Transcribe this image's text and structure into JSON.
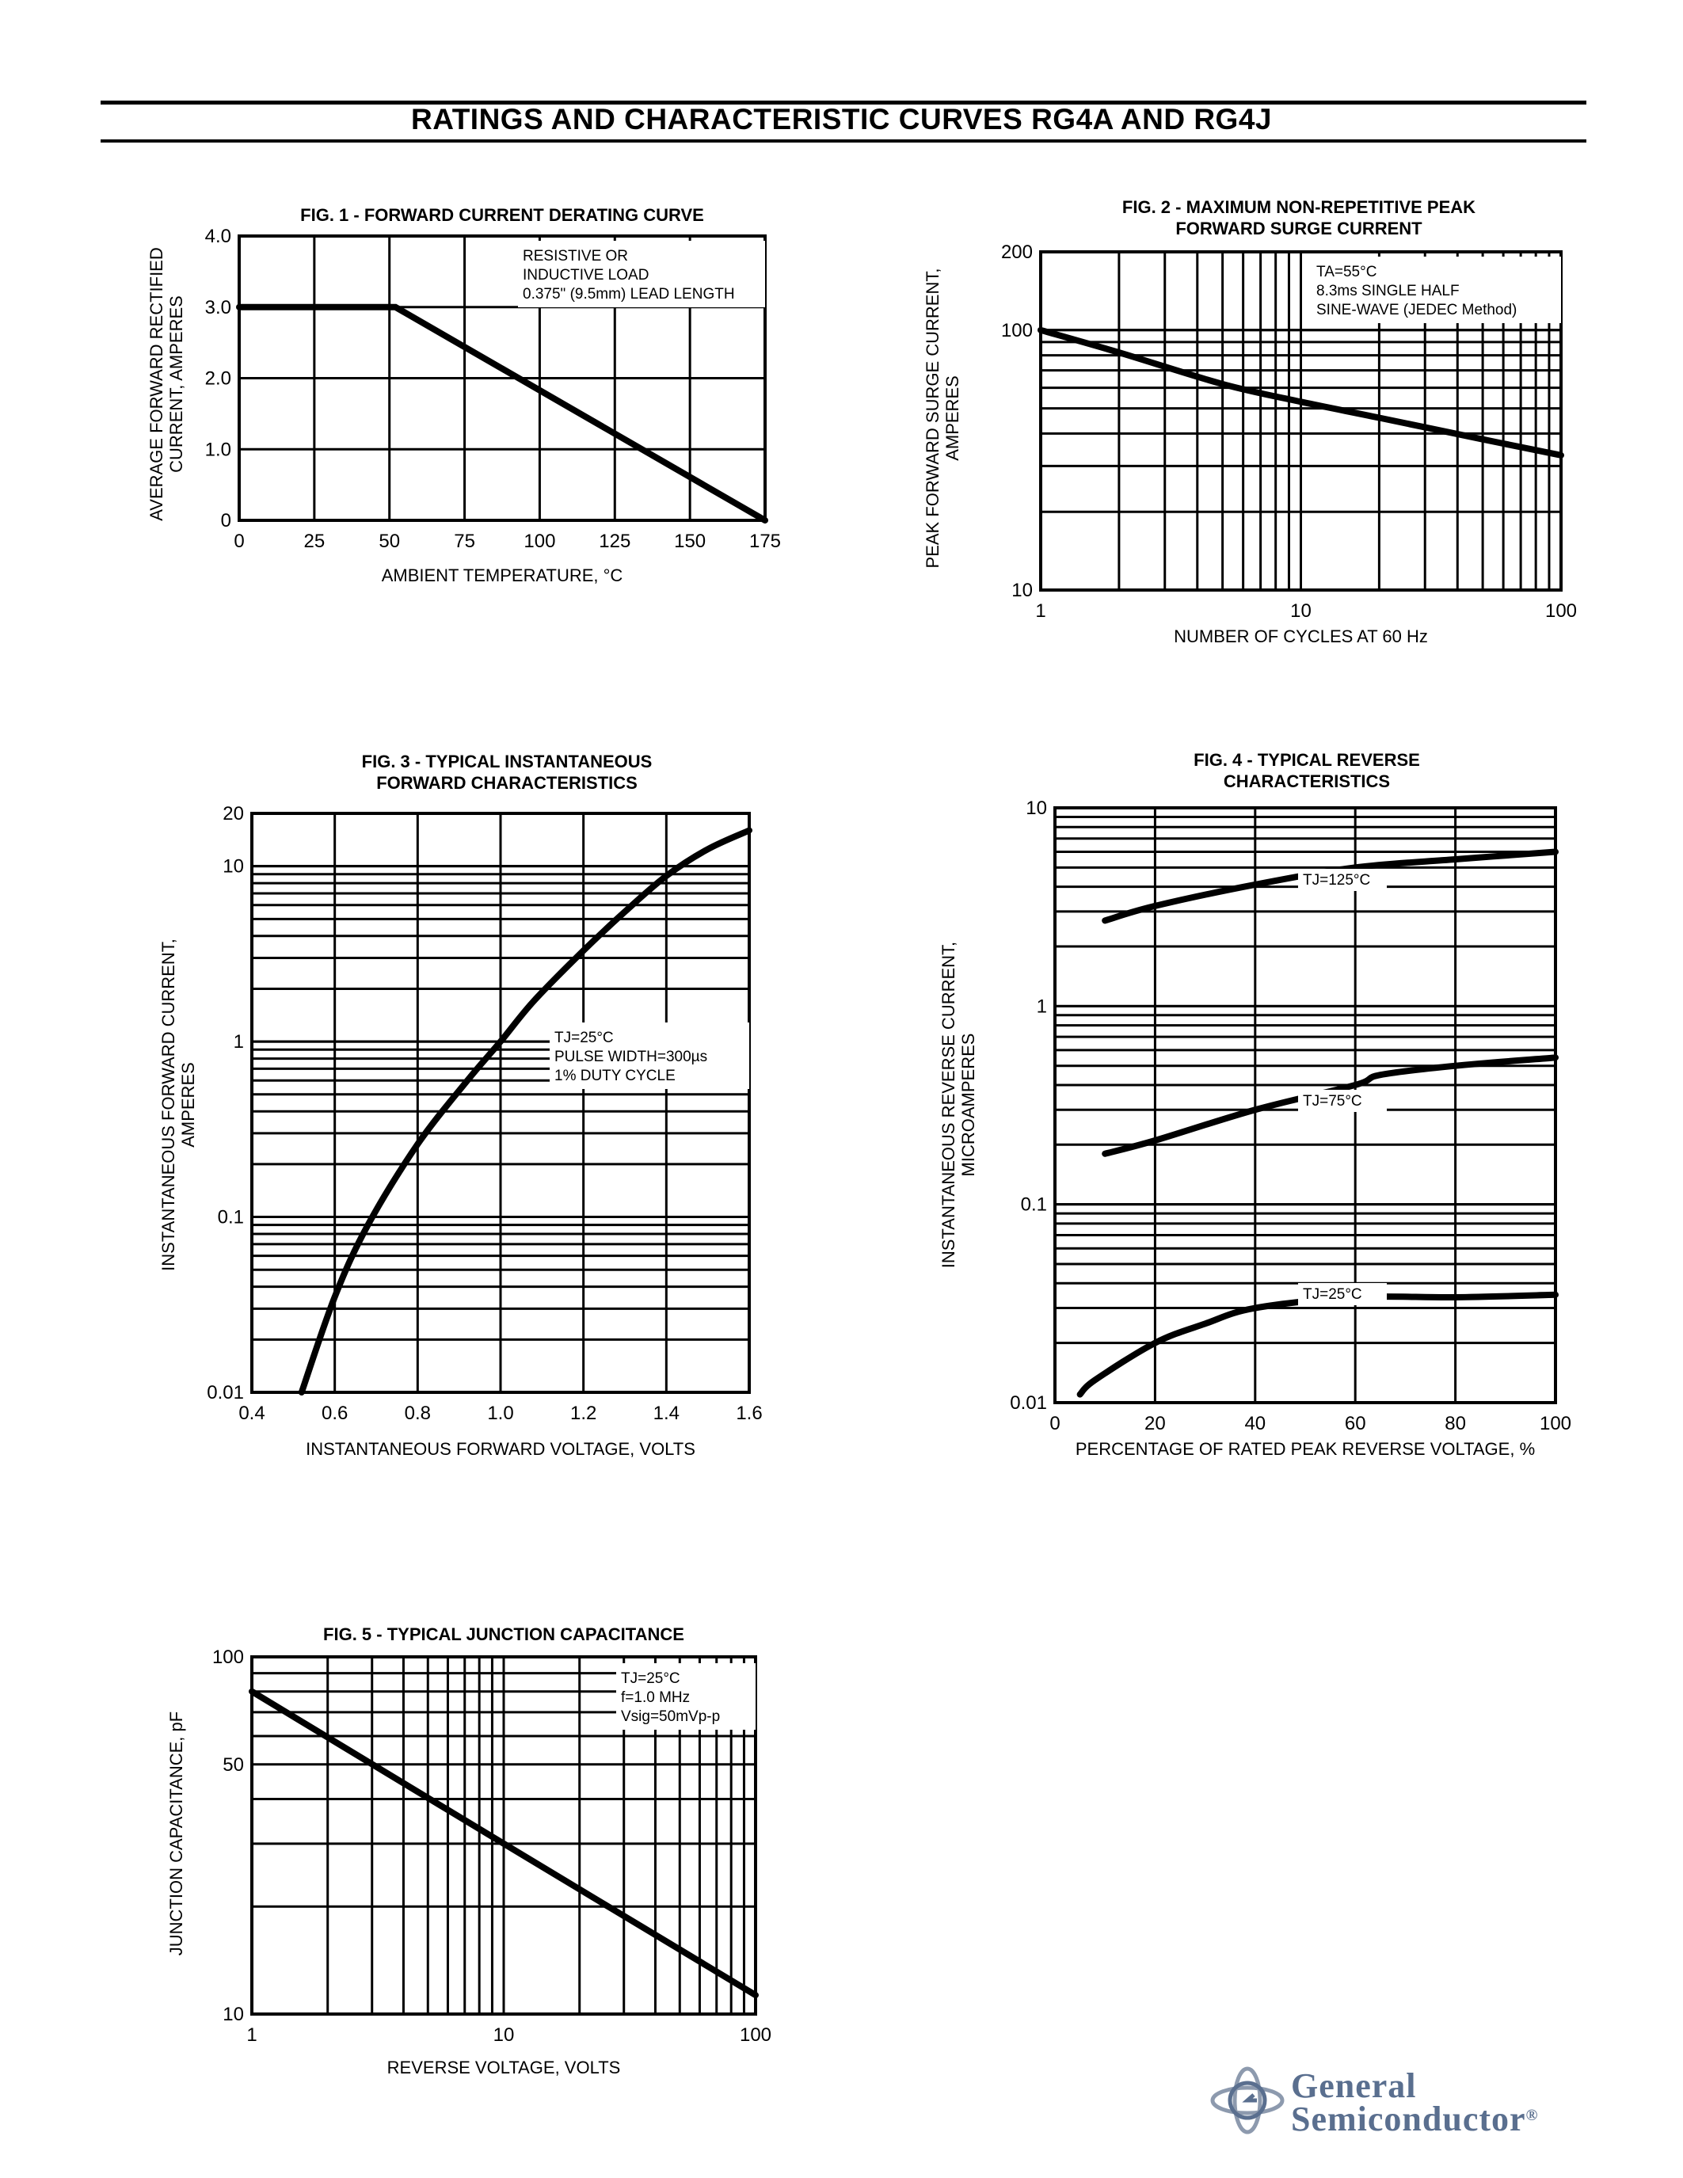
{
  "page": {
    "title": "RATINGS AND CHARACTERISTIC CURVES RG4A AND RG4J"
  },
  "logo": {
    "line1": "General",
    "line2": "Semiconductor",
    "mark": "®"
  },
  "colors": {
    "ink": "#000000",
    "logo": "#5a6f8f"
  },
  "chart_data": [
    {
      "id": "fig1",
      "type": "line",
      "title": "FIG. 1 - FORWARD CURRENT DERATING CURVE",
      "xlabel": "AMBIENT TEMPERATURE, °C",
      "ylabel": "AVERAGE FORWARD RECTIFIED CURRENT, AMPERES",
      "xscale": "linear",
      "yscale": "linear",
      "xlim": [
        0,
        175
      ],
      "ylim": [
        0,
        4.0
      ],
      "xticks": [
        "0",
        "25",
        "50",
        "75",
        "100",
        "125",
        "150",
        "175"
      ],
      "yticks": [
        "0",
        "1.0",
        "2.0",
        "3.0",
        "4.0"
      ],
      "grid": true,
      "annotation": [
        "RESISTIVE OR",
        "INDUCTIVE LOAD",
        "0.375\" (9.5mm) LEAD LENGTH"
      ],
      "series": [
        {
          "x": [
            0,
            52,
            175
          ],
          "y": [
            3.0,
            3.0,
            0
          ]
        }
      ]
    },
    {
      "id": "fig2",
      "type": "line",
      "title": "FIG. 2 - MAXIMUM NON-REPETITIVE PEAK FORWARD SURGE CURRENT",
      "xlabel": "NUMBER OF CYCLES AT 60 Hz",
      "ylabel": "PEAK FORWARD SURGE CURRENT, AMPERES",
      "xscale": "log",
      "yscale": "log",
      "xlim": [
        1,
        100
      ],
      "ylim": [
        10,
        200
      ],
      "xticks": [
        "1",
        "10",
        "100"
      ],
      "yticks": [
        "10",
        "100",
        "200"
      ],
      "grid": true,
      "annotation": [
        "TA=55°C",
        "8.3ms SINGLE HALF",
        "SINE-WAVE (JEDEC Method)"
      ],
      "series": [
        {
          "x": [
            1,
            2,
            5,
            10,
            20,
            50,
            100
          ],
          "y": [
            100,
            82,
            62,
            53,
            46,
            38,
            33
          ]
        }
      ]
    },
    {
      "id": "fig3",
      "type": "line",
      "title": "FIG. 3 - TYPICAL INSTANTANEOUS FORWARD CHARACTERISTICS",
      "xlabel": "INSTANTANEOUS FORWARD VOLTAGE, VOLTS",
      "ylabel": "INSTANTANEOUS FORWARD CURRENT, AMPERES",
      "xscale": "linear",
      "yscale": "log",
      "xlim": [
        0.4,
        1.6
      ],
      "ylim": [
        0.01,
        20
      ],
      "xticks": [
        "0.4",
        "0.6",
        "0.8",
        "1.0",
        "1.2",
        "1.4",
        "1.6"
      ],
      "yticks": [
        "0.01",
        "0.1",
        "1",
        "10",
        "20"
      ],
      "grid": true,
      "annotation": [
        "TJ=25°C",
        "PULSE WIDTH=300µs",
        "1% DUTY CYCLE"
      ],
      "series": [
        {
          "x": [
            0.52,
            0.6,
            0.68,
            0.8,
            0.92,
            1.0,
            1.08,
            1.2,
            1.3,
            1.4,
            1.5,
            1.6
          ],
          "y": [
            0.01,
            0.035,
            0.09,
            0.26,
            0.6,
            1.0,
            1.7,
            3.3,
            5.5,
            8.8,
            12.5,
            16
          ]
        }
      ]
    },
    {
      "id": "fig4",
      "type": "line",
      "title": "FIG. 4 - TYPICAL REVERSE CHARACTERISTICS",
      "xlabel": "PERCENTAGE OF RATED PEAK REVERSE VOLTAGE, %",
      "ylabel": "INSTANTANEOUS REVERSE CURRENT, MICROAMPERES",
      "xscale": "linear",
      "yscale": "log",
      "xlim": [
        0,
        100
      ],
      "ylim": [
        0.01,
        10
      ],
      "xticks": [
        "0",
        "20",
        "40",
        "60",
        "80",
        "100"
      ],
      "yticks": [
        "0.01",
        "0.1",
        "1",
        "10"
      ],
      "grid": true,
      "series": [
        {
          "name": "TJ=125°C",
          "x": [
            10,
            20,
            40,
            60,
            80,
            100
          ],
          "y": [
            2.7,
            3.2,
            4.1,
            5.0,
            5.5,
            6.0
          ]
        },
        {
          "name": "TJ=75°C",
          "x": [
            10,
            20,
            40,
            60,
            65,
            80,
            100
          ],
          "y": [
            0.18,
            0.21,
            0.3,
            0.4,
            0.45,
            0.5,
            0.55
          ]
        },
        {
          "name": "TJ=25°C",
          "x": [
            5,
            8,
            20,
            30,
            40,
            60,
            80,
            100
          ],
          "y": [
            0.011,
            0.013,
            0.02,
            0.025,
            0.03,
            0.034,
            0.034,
            0.035
          ]
        }
      ]
    },
    {
      "id": "fig5",
      "type": "line",
      "title": "FIG. 5 - TYPICAL JUNCTION CAPACITANCE",
      "xlabel": "REVERSE VOLTAGE, VOLTS",
      "ylabel": "JUNCTION CAPACITANCE, pF",
      "xscale": "log",
      "yscale": "log",
      "xlim": [
        1,
        100
      ],
      "ylim": [
        10,
        100
      ],
      "xticks": [
        "1",
        "10",
        "100"
      ],
      "yticks": [
        "10",
        "50",
        "100"
      ],
      "grid": true,
      "annotation": [
        "TJ=25°C",
        "f=1.0 MHz",
        "Vsig=50mVp-p"
      ],
      "series": [
        {
          "x": [
            1,
            10,
            100
          ],
          "y": [
            80,
            30,
            11.3
          ]
        }
      ]
    }
  ]
}
